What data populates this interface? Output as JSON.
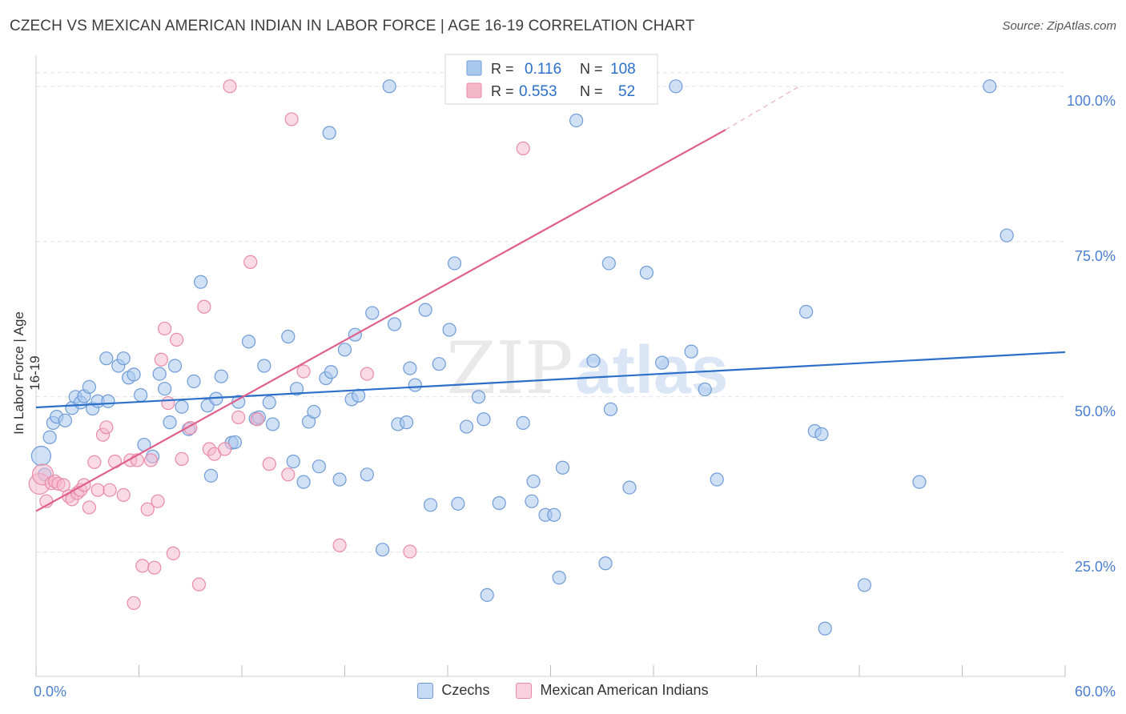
{
  "title": "CZECH VS MEXICAN AMERICAN INDIAN IN LABOR FORCE | AGE 16-19 CORRELATION CHART",
  "source": "Source: ZipAtlas.com",
  "watermark": {
    "zip": "ZIP",
    "atlas": "atlas"
  },
  "legend_top": [
    {
      "r_label": "R =",
      "r_value": "0.116",
      "n_label": "N =",
      "n_value": "108"
    },
    {
      "r_label": "R =",
      "r_value": "0.553",
      "n_label": "N =",
      "n_value": "52"
    }
  ],
  "colors": {
    "blue_fill": "#a9c8ee",
    "blue_stroke": "#6f9bd8",
    "blue_line": "#2c6fc9",
    "pink_fill": "#f5b8cb",
    "pink_stroke": "#e98aa9",
    "pink_line": "#e0608c",
    "axis_text": "#4a7fd1"
  },
  "chart_data": {
    "type": "scatter",
    "ylabel": "In Labor Force | Age 16-19",
    "xlim": [
      0,
      60
    ],
    "ylim": [
      5,
      105
    ],
    "x_tick_labels": [
      "0.0%",
      "60.0%"
    ],
    "y_ticks": [
      25,
      50,
      75,
      100
    ],
    "y_tick_labels": [
      "25.0%",
      "50.0%",
      "75.0%",
      "100.0%"
    ],
    "grid": true,
    "legend": "bottom-center",
    "series": [
      {
        "name": "Czechs",
        "trend": {
          "x0": 0,
          "y0": 48.3,
          "x1": 60,
          "y1": 57.2
        },
        "points": [
          [
            0.3,
            40.5
          ],
          [
            0.5,
            37.5
          ],
          [
            0.8,
            43.5
          ],
          [
            1.0,
            45.8
          ],
          [
            1.2,
            46.8
          ],
          [
            1.7,
            46.2
          ],
          [
            2.1,
            48.2
          ],
          [
            2.3,
            50.0
          ],
          [
            2.6,
            49.1
          ],
          [
            2.8,
            50.1
          ],
          [
            3.1,
            51.6
          ],
          [
            3.3,
            48.1
          ],
          [
            3.6,
            49.3
          ],
          [
            4.2,
            49.3
          ],
          [
            4.1,
            56.2
          ],
          [
            4.8,
            55.0
          ],
          [
            5.1,
            56.2
          ],
          [
            5.4,
            53.1
          ],
          [
            5.7,
            53.6
          ],
          [
            6.1,
            50.3
          ],
          [
            6.3,
            42.3
          ],
          [
            6.8,
            40.4
          ],
          [
            7.2,
            53.7
          ],
          [
            7.5,
            51.3
          ],
          [
            7.8,
            45.9
          ],
          [
            8.1,
            55.0
          ],
          [
            8.5,
            48.4
          ],
          [
            8.9,
            44.8
          ],
          [
            9.2,
            52.5
          ],
          [
            9.6,
            68.5
          ],
          [
            10.0,
            48.6
          ],
          [
            10.2,
            37.3
          ],
          [
            10.5,
            49.7
          ],
          [
            10.8,
            53.3
          ],
          [
            11.4,
            42.6
          ],
          [
            11.8,
            49.2
          ],
          [
            11.6,
            42.7
          ],
          [
            12.4,
            58.9
          ],
          [
            12.8,
            46.5
          ],
          [
            13.0,
            46.7
          ],
          [
            13.3,
            55.0
          ],
          [
            13.6,
            49.1
          ],
          [
            13.8,
            45.6
          ],
          [
            14.7,
            59.7
          ],
          [
            15.0,
            39.6
          ],
          [
            15.2,
            51.3
          ],
          [
            15.6,
            36.3
          ],
          [
            15.9,
            46.0
          ],
          [
            16.2,
            47.6
          ],
          [
            16.5,
            38.8
          ],
          [
            16.9,
            53.0
          ],
          [
            17.2,
            54.0
          ],
          [
            17.1,
            92.5
          ],
          [
            17.7,
            36.7
          ],
          [
            18.0,
            57.6
          ],
          [
            18.4,
            49.6
          ],
          [
            18.6,
            60.0
          ],
          [
            18.8,
            50.2
          ],
          [
            19.3,
            37.5
          ],
          [
            19.6,
            63.5
          ],
          [
            20.2,
            25.4
          ],
          [
            20.6,
            100.0
          ],
          [
            20.9,
            61.7
          ],
          [
            21.1,
            45.6
          ],
          [
            21.6,
            45.9
          ],
          [
            21.8,
            54.6
          ],
          [
            22.1,
            51.9
          ],
          [
            22.7,
            64.0
          ],
          [
            23.0,
            32.6
          ],
          [
            23.5,
            55.3
          ],
          [
            24.1,
            60.8
          ],
          [
            24.4,
            71.5
          ],
          [
            24.6,
            32.8
          ],
          [
            25.1,
            45.2
          ],
          [
            25.8,
            50.0
          ],
          [
            26.1,
            46.4
          ],
          [
            26.3,
            18.1
          ],
          [
            27.0,
            32.9
          ],
          [
            27.8,
            100.0
          ],
          [
            28.4,
            45.8
          ],
          [
            28.9,
            33.2
          ],
          [
            29.0,
            36.4
          ],
          [
            29.7,
            31.0
          ],
          [
            30.2,
            31.0
          ],
          [
            30.5,
            20.9
          ],
          [
            30.7,
            38.6
          ],
          [
            31.5,
            94.5
          ],
          [
            32.5,
            55.8
          ],
          [
            33.2,
            23.2
          ],
          [
            33.4,
            71.5
          ],
          [
            33.5,
            48.0
          ],
          [
            34.6,
            35.4
          ],
          [
            35.0,
            100.0
          ],
          [
            35.6,
            70.0
          ],
          [
            36.5,
            55.5
          ],
          [
            37.3,
            100.0
          ],
          [
            38.2,
            57.3
          ],
          [
            39.0,
            51.2
          ],
          [
            39.7,
            36.7
          ],
          [
            44.9,
            63.7
          ],
          [
            45.4,
            44.5
          ],
          [
            45.8,
            44.0
          ],
          [
            46.0,
            12.7
          ],
          [
            48.3,
            19.7
          ],
          [
            51.5,
            36.3
          ],
          [
            55.6,
            100.0
          ],
          [
            56.6,
            76.0
          ]
        ]
      },
      {
        "name": "Mexican American Indians",
        "trend": {
          "x0": 0,
          "y0": 31.6,
          "x1": 40.2,
          "y1": 93.0,
          "dash_x1": 44.5,
          "dash_y1": 100.0
        },
        "points": [
          [
            0.2,
            36.0
          ],
          [
            0.4,
            37.5
          ],
          [
            0.6,
            33.2
          ],
          [
            0.9,
            36.1
          ],
          [
            1.1,
            36.4
          ],
          [
            1.3,
            36.0
          ],
          [
            1.6,
            35.8
          ],
          [
            1.9,
            34.0
          ],
          [
            2.1,
            33.5
          ],
          [
            2.4,
            34.5
          ],
          [
            2.6,
            35.0
          ],
          [
            2.8,
            35.8
          ],
          [
            3.1,
            32.2
          ],
          [
            3.4,
            39.5
          ],
          [
            3.6,
            35.0
          ],
          [
            3.9,
            43.9
          ],
          [
            4.1,
            45.1
          ],
          [
            4.3,
            35.0
          ],
          [
            4.6,
            39.6
          ],
          [
            5.1,
            34.2
          ],
          [
            5.5,
            39.8
          ],
          [
            5.7,
            16.8
          ],
          [
            5.9,
            39.8
          ],
          [
            6.2,
            22.8
          ],
          [
            6.5,
            31.9
          ],
          [
            6.7,
            39.8
          ],
          [
            6.9,
            22.5
          ],
          [
            7.1,
            33.2
          ],
          [
            7.3,
            56.0
          ],
          [
            7.5,
            61.0
          ],
          [
            7.7,
            49.0
          ],
          [
            8.0,
            24.8
          ],
          [
            8.2,
            59.2
          ],
          [
            8.5,
            40.0
          ],
          [
            9.0,
            45.0
          ],
          [
            9.5,
            19.8
          ],
          [
            9.8,
            64.5
          ],
          [
            10.1,
            41.6
          ],
          [
            10.4,
            40.8
          ],
          [
            11.0,
            41.6
          ],
          [
            11.3,
            100.0
          ],
          [
            11.8,
            46.7
          ],
          [
            12.5,
            71.7
          ],
          [
            12.9,
            46.4
          ],
          [
            13.6,
            39.2
          ],
          [
            14.7,
            37.5
          ],
          [
            14.9,
            94.7
          ],
          [
            15.6,
            54.1
          ],
          [
            17.7,
            26.1
          ],
          [
            19.3,
            53.7
          ],
          [
            21.8,
            25.1
          ],
          [
            28.4,
            90.0
          ]
        ]
      }
    ]
  }
}
